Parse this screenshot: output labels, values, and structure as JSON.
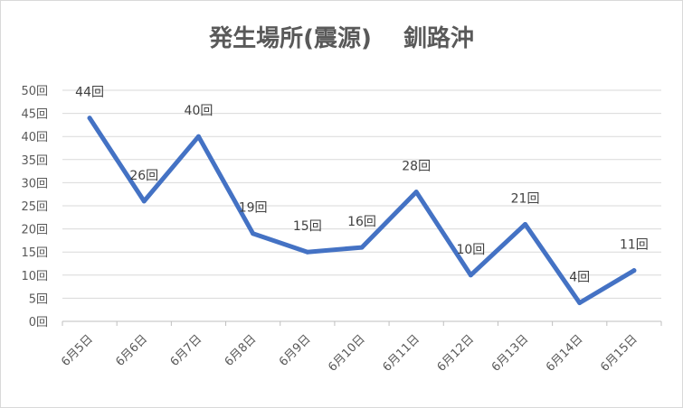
{
  "chart_data": {
    "type": "line",
    "title": "発生場所(震源)　 釧路沖",
    "categories": [
      "6月5日",
      "6月6日",
      "6月7日",
      "6月8日",
      "6月9日",
      "6月10日",
      "6月11日",
      "6月12日",
      "6月13日",
      "6月14日",
      "6月15日"
    ],
    "series": [
      {
        "values": [
          44,
          26,
          40,
          19,
          15,
          16,
          28,
          10,
          21,
          4,
          11
        ],
        "color": "#4472c4",
        "data_labels": [
          "44回",
          "26回",
          "40回",
          "19回",
          "15回",
          "16回",
          "28回",
          "10回",
          "21回",
          "4回",
          "11回"
        ]
      }
    ],
    "ylim": [
      0,
      50
    ],
    "y_ticks": [
      0,
      5,
      10,
      15,
      20,
      25,
      30,
      35,
      40,
      45,
      50
    ],
    "y_tick_labels": [
      "0回",
      "5回",
      "10回",
      "15回",
      "20回",
      "25回",
      "30回",
      "35回",
      "40回",
      "45回",
      "50回"
    ],
    "grid": true,
    "legend": "none"
  }
}
